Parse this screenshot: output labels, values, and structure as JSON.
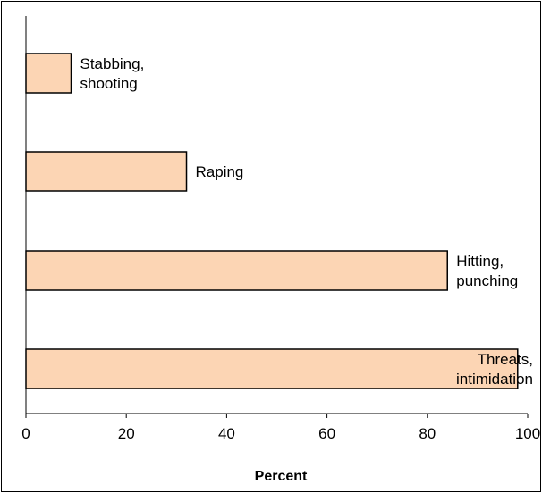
{
  "chart_data": {
    "type": "bar",
    "orientation": "horizontal",
    "categories": [
      "Stabbing, shooting",
      "Raping",
      "Hitting, punching",
      "Threats, intimidation"
    ],
    "label_lines": [
      [
        "Stabbing,",
        "shooting"
      ],
      [
        "Raping"
      ],
      [
        "Hitting,",
        "punching"
      ],
      [
        "Threats,",
        "intimidation"
      ]
    ],
    "values": [
      9,
      32,
      84,
      98
    ],
    "xlabel": "Percent",
    "ylabel": "",
    "xlim": [
      0,
      100
    ],
    "xticks": [
      "0",
      "20",
      "40",
      "60",
      "80",
      "100"
    ],
    "grid": false,
    "legend": "none",
    "colors": {
      "bar_fill": "#fcd5b4",
      "bar_stroke": "#000000",
      "axis": "#000000"
    }
  }
}
